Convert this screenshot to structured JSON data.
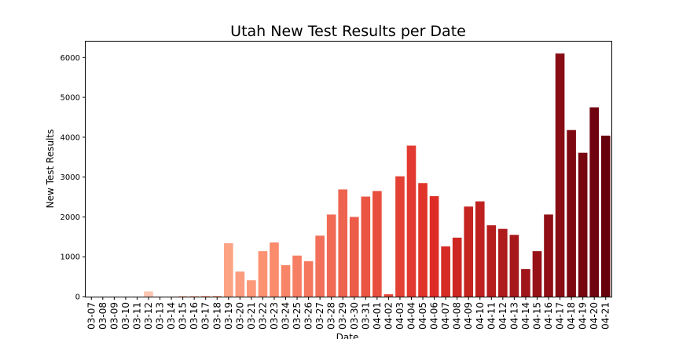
{
  "chart_data": {
    "type": "bar",
    "title": "Utah New Test Results per Date",
    "xlabel": "Date",
    "ylabel": "New Test Results",
    "ylim": [
      0,
      6400
    ],
    "yticks": [
      0,
      1000,
      2000,
      3000,
      4000,
      5000,
      6000
    ],
    "grid": false,
    "legend": "none",
    "palette": "Reds (light to dark, ordered by date)",
    "categories": [
      "03-07",
      "03-08",
      "03-09",
      "03-10",
      "03-11",
      "03-12",
      "03-13",
      "03-14",
      "03-15",
      "03-16",
      "03-17",
      "03-18",
      "03-19",
      "03-20",
      "03-21",
      "03-22",
      "03-23",
      "03-24",
      "03-25",
      "03-26",
      "03-27",
      "03-28",
      "03-29",
      "03-30",
      "03-31",
      "04-01",
      "04-02",
      "04-03",
      "04-04",
      "04-05",
      "04-06",
      "04-07",
      "04-08",
      "04-09",
      "04-10",
      "04-11",
      "04-12",
      "04-13",
      "04-14",
      "04-15",
      "04-16",
      "04-17",
      "04-18",
      "04-19",
      "04-20",
      "04-21"
    ],
    "values": [
      3,
      3,
      3,
      3,
      3,
      130,
      3,
      3,
      15,
      15,
      20,
      20,
      1340,
      630,
      410,
      1140,
      1360,
      790,
      1030,
      890,
      1530,
      2060,
      2690,
      2000,
      2510,
      2650,
      60,
      3020,
      3790,
      2850,
      2520,
      1260,
      1480,
      2260,
      2390,
      1790,
      1700,
      1550,
      690,
      1140,
      2060,
      6100,
      4180,
      3610,
      4750,
      4040
    ]
  }
}
